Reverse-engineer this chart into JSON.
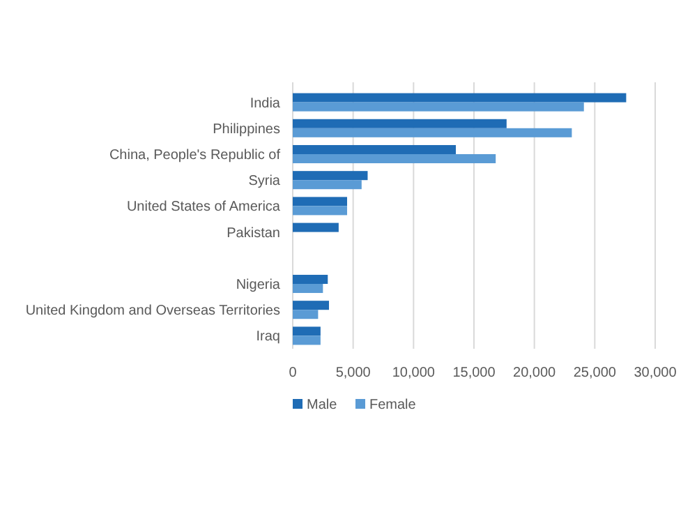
{
  "chart_data": {
    "type": "bar",
    "orientation": "horizontal",
    "categories": [
      "India",
      "Philippines",
      "China, People's Republic of",
      "Syria",
      "United States of America",
      "Pakistan",
      null,
      "Nigeria",
      "United Kingdom and Overseas Territories",
      "Iraq"
    ],
    "series": [
      {
        "name": "Male",
        "color": "#1f6cb5",
        "values": [
          27600,
          17700,
          13500,
          6200,
          4500,
          3800,
          null,
          2900,
          3000,
          2300
        ]
      },
      {
        "name": "Female",
        "color": "#5a9bd5",
        "values": [
          24100,
          23100,
          16800,
          5700,
          4500,
          null,
          null,
          2500,
          2100,
          2300
        ]
      }
    ],
    "xlim": [
      0,
      30000
    ],
    "xticks": [
      {
        "value": 0,
        "label": "0"
      },
      {
        "value": 5000,
        "label": "5,000"
      },
      {
        "value": 10000,
        "label": "10,000"
      },
      {
        "value": 15000,
        "label": "15,000"
      },
      {
        "value": 20000,
        "label": "20,000"
      },
      {
        "value": 25000,
        "label": "25,000"
      },
      {
        "value": 30000,
        "label": "30,000"
      }
    ],
    "grid": "x",
    "legend": "bottom"
  }
}
